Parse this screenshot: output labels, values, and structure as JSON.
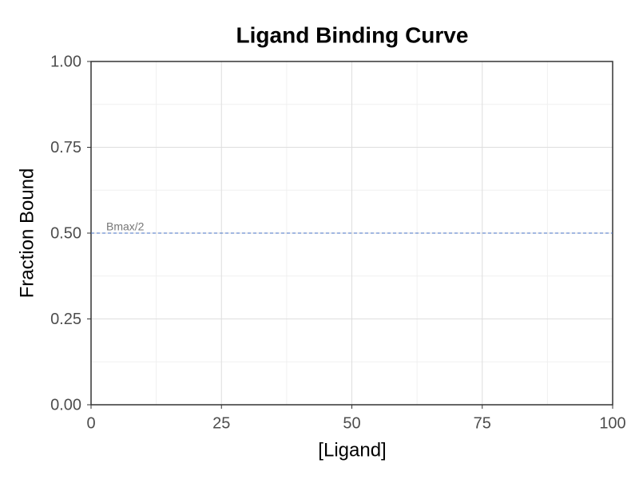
{
  "chart_data": {
    "type": "line",
    "title": "Ligand Binding Curve",
    "x_label": "[Ligand]",
    "y_label": "Fraction Bound",
    "series": [],
    "xlim": [
      0,
      100
    ],
    "xticks": [
      0,
      25,
      50,
      75,
      100
    ],
    "ylim": [
      0,
      1
    ],
    "yticks": [
      {
        "value": 0,
        "label": "0.00"
      },
      {
        "value": 0.25,
        "label": "0.25"
      },
      {
        "value": 0.5,
        "label": "0.50"
      },
      {
        "value": 0.75,
        "label": "0.75"
      },
      {
        "value": 1,
        "label": "1.00"
      }
    ],
    "grid": true,
    "minor_grid": true,
    "hline": {
      "y": 0.5,
      "label": "Bmax/2",
      "color": "#4472c4",
      "style": "dashed"
    }
  }
}
